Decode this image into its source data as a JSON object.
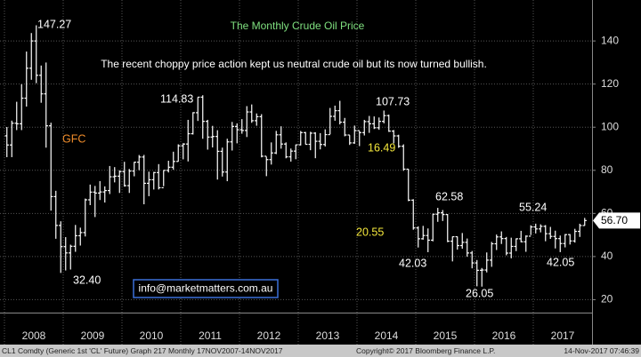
{
  "chart_data": {
    "type": "ohlc",
    "title": "The Monthly Crude Oil Price",
    "subtitle": "The recent choppy price action kept us neutral crude oil but its now turned bullish.",
    "years": [
      "2008",
      "2009",
      "2010",
      "2011",
      "2012",
      "2013",
      "2014",
      "2015",
      "2016",
      "2017"
    ],
    "ylim": [
      14,
      159
    ],
    "yticks": [
      20,
      40,
      60,
      80,
      100,
      120,
      140
    ],
    "grid": true,
    "color": "#ffffff",
    "open": [
      96.0,
      91.75,
      101.84,
      101.58,
      113.46,
      127.35,
      140.0,
      124.08,
      115.46,
      100.64,
      67.81,
      54.43,
      44.6,
      41.68,
      44.76,
      49.66,
      51.12,
      66.31,
      69.89,
      69.45,
      69.96,
      70.61,
      77.0,
      77.28,
      79.36,
      72.89,
      79.66,
      83.76,
      86.15,
      73.97,
      75.63,
      78.95,
      71.92,
      79.97,
      81.43,
      84.11,
      91.38,
      92.19,
      96.97,
      106.72,
      113.93,
      102.7,
      95.42,
      95.7,
      88.81,
      79.2,
      93.19,
      100.36,
      98.83,
      98.48,
      107.07,
      103.02,
      104.87,
      86.53,
      84.96,
      88.06,
      96.47,
      92.19,
      86.24,
      88.91,
      91.82,
      97.49,
      92.05,
      97.23,
      93.46,
      91.97,
      96.56,
      105.03,
      107.65,
      102.33,
      96.38,
      92.72,
      98.42,
      97.49,
      102.59,
      101.58,
      99.74,
      102.71,
      105.37,
      98.17,
      95.96,
      91.16,
      80.54,
      66.15,
      53.27,
      48.24,
      49.76,
      47.6,
      59.63,
      60.3,
      59.47,
      47.12,
      49.2,
      45.09,
      46.59,
      41.65,
      37.04,
      33.62,
      33.75,
      38.34,
      45.92,
      49.1,
      48.33,
      41.6,
      44.7,
      48.24,
      46.86,
      49.44,
      53.72,
      52.81,
      54.01,
      50.6,
      49.33,
      48.32,
      46.04,
      50.17,
      47.23,
      51.67,
      54.38
    ],
    "high": [
      100.09,
      103.05,
      111.8,
      119.93,
      135.09,
      143.67,
      147.27,
      128.6,
      130.0,
      102.08,
      70.5,
      56.35,
      49.0,
      45.5,
      54.66,
      53.4,
      66.88,
      73.38,
      72.75,
      75.0,
      72.56,
      82.0,
      81.48,
      80.0,
      83.95,
      80.62,
      83.9,
      87.09,
      87.15,
      79.38,
      79.28,
      82.87,
      80.04,
      84.43,
      88.63,
      92.06,
      92.58,
      103.41,
      106.95,
      113.93,
      114.83,
      103.42,
      100.62,
      98.59,
      90.52,
      94.65,
      102.44,
      101.77,
      103.74,
      109.77,
      110.55,
      106.38,
      106.04,
      86.37,
      92.94,
      98.29,
      100.42,
      92.94,
      90.1,
      91.97,
      98.24,
      97.8,
      97.88,
      97.68,
      97.25,
      99.0,
      108.93,
      110.0,
      112.24,
      104.3,
      96.3,
      100.75,
      98.25,
      103.4,
      105.22,
      104.99,
      104.5,
      107.73,
      105.82,
      98.69,
      96.5,
      92.05,
      80.6,
      66.6,
      54.02,
      54.24,
      53.03,
      59.9,
      62.58,
      61.57,
      59.72,
      49.32,
      49.29,
      50.92,
      48.36,
      42.58,
      38.39,
      34.69,
      41.9,
      46.78,
      50.21,
      51.67,
      49.08,
      48.75,
      48.42,
      51.93,
      49.8,
      54.51,
      55.24,
      54.94,
      54.59,
      53.76,
      52.0,
      49.74,
      50.43,
      50.4,
      52.86,
      55.22,
      57.92
    ],
    "low": [
      86.11,
      86.11,
      98.65,
      98.65,
      109.56,
      122.0,
      120.42,
      111.34,
      90.51,
      61.3,
      48.25,
      32.4,
      33.55,
      33.98,
      42.2,
      45.1,
      49.31,
      63.85,
      58.32,
      66.22,
      65.05,
      69.0,
      74.4,
      69.5,
      72.43,
      69.5,
      77.22,
      80.1,
      64.24,
      68.0,
      71.1,
      71.12,
      72.63,
      79.0,
      80.3,
      84.0,
      85.1,
      84.12,
      96.61,
      102.9,
      94.63,
      89.6,
      90.61,
      75.71,
      77.11,
      74.95,
      89.17,
      92.52,
      96.98,
      95.44,
      102.04,
      100.68,
      86.01,
      77.28,
      82.66,
      87.5,
      90.04,
      85.57,
      84.05,
      85.15,
      91.54,
      92.01,
      89.33,
      85.61,
      89.71,
      91.07,
      96.75,
      103.0,
      101.3,
      95.78,
      91.77,
      92.3,
      91.24,
      96.16,
      97.37,
      99.16,
      98.8,
      101.8,
      97.82,
      92.5,
      90.43,
      79.78,
      65.69,
      52.44,
      44.2,
      47.82,
      42.03,
      47.05,
      56.1,
      56.5,
      46.68,
      37.75,
      43.21,
      43.61,
      39.95,
      34.53,
      26.19,
      26.05,
      32.64,
      35.24,
      43.03,
      45.83,
      40.57,
      39.19,
      42.52,
      46.63,
      42.2,
      49.95,
      50.71,
      51.22,
      47.1,
      48.18,
      43.76,
      42.05,
      44.25,
      45.58,
      46.47,
      49.1,
      54.3
    ],
    "close": [
      91.75,
      101.84,
      101.58,
      113.46,
      127.35,
      140.0,
      124.08,
      115.46,
      100.64,
      67.81,
      54.43,
      44.6,
      41.68,
      44.76,
      49.66,
      51.12,
      66.31,
      69.89,
      69.45,
      69.96,
      70.61,
      77.0,
      77.28,
      79.36,
      72.89,
      79.66,
      83.76,
      86.15,
      73.97,
      75.63,
      78.95,
      71.92,
      79.97,
      81.43,
      84.11,
      91.38,
      92.19,
      96.97,
      106.72,
      113.93,
      102.7,
      95.42,
      95.7,
      88.81,
      79.2,
      93.19,
      100.36,
      98.83,
      98.48,
      107.07,
      103.02,
      104.87,
      86.53,
      84.96,
      88.06,
      96.47,
      92.19,
      86.24,
      88.91,
      91.82,
      97.49,
      92.05,
      97.23,
      93.46,
      91.97,
      96.56,
      105.03,
      107.65,
      102.33,
      96.38,
      92.72,
      98.42,
      97.49,
      102.59,
      101.58,
      99.74,
      102.71,
      105.37,
      98.17,
      95.96,
      91.16,
      80.54,
      66.15,
      53.27,
      48.24,
      49.76,
      47.6,
      59.63,
      60.3,
      59.47,
      47.12,
      49.2,
      45.09,
      46.59,
      41.65,
      37.04,
      33.62,
      33.75,
      38.34,
      45.92,
      49.1,
      48.33,
      41.6,
      44.7,
      48.24,
      46.86,
      49.44,
      53.72,
      52.81,
      54.01,
      50.6,
      49.33,
      48.32,
      46.04,
      50.17,
      47.23,
      51.67,
      54.38,
      56.7
    ],
    "last": {
      "value": 56.7,
      "label": "56.70"
    },
    "annotations": [
      "147.27",
      "GFC",
      "32.40",
      "114.83",
      "107.73",
      "16.49",
      "20.55",
      "62.58",
      "42.03",
      "26.05",
      "55.24",
      "42.05"
    ],
    "contact": "info@marketmatters.com.au",
    "footer": [
      "CL1 Comdty (Generic 1st 'CL' Future) Graph 217  Monthly 17NOV2007-14NOV2017",
      "Copyright© 2017 Bloomberg Finance L.P.",
      "14-Nov-2017 07:46:39"
    ]
  }
}
